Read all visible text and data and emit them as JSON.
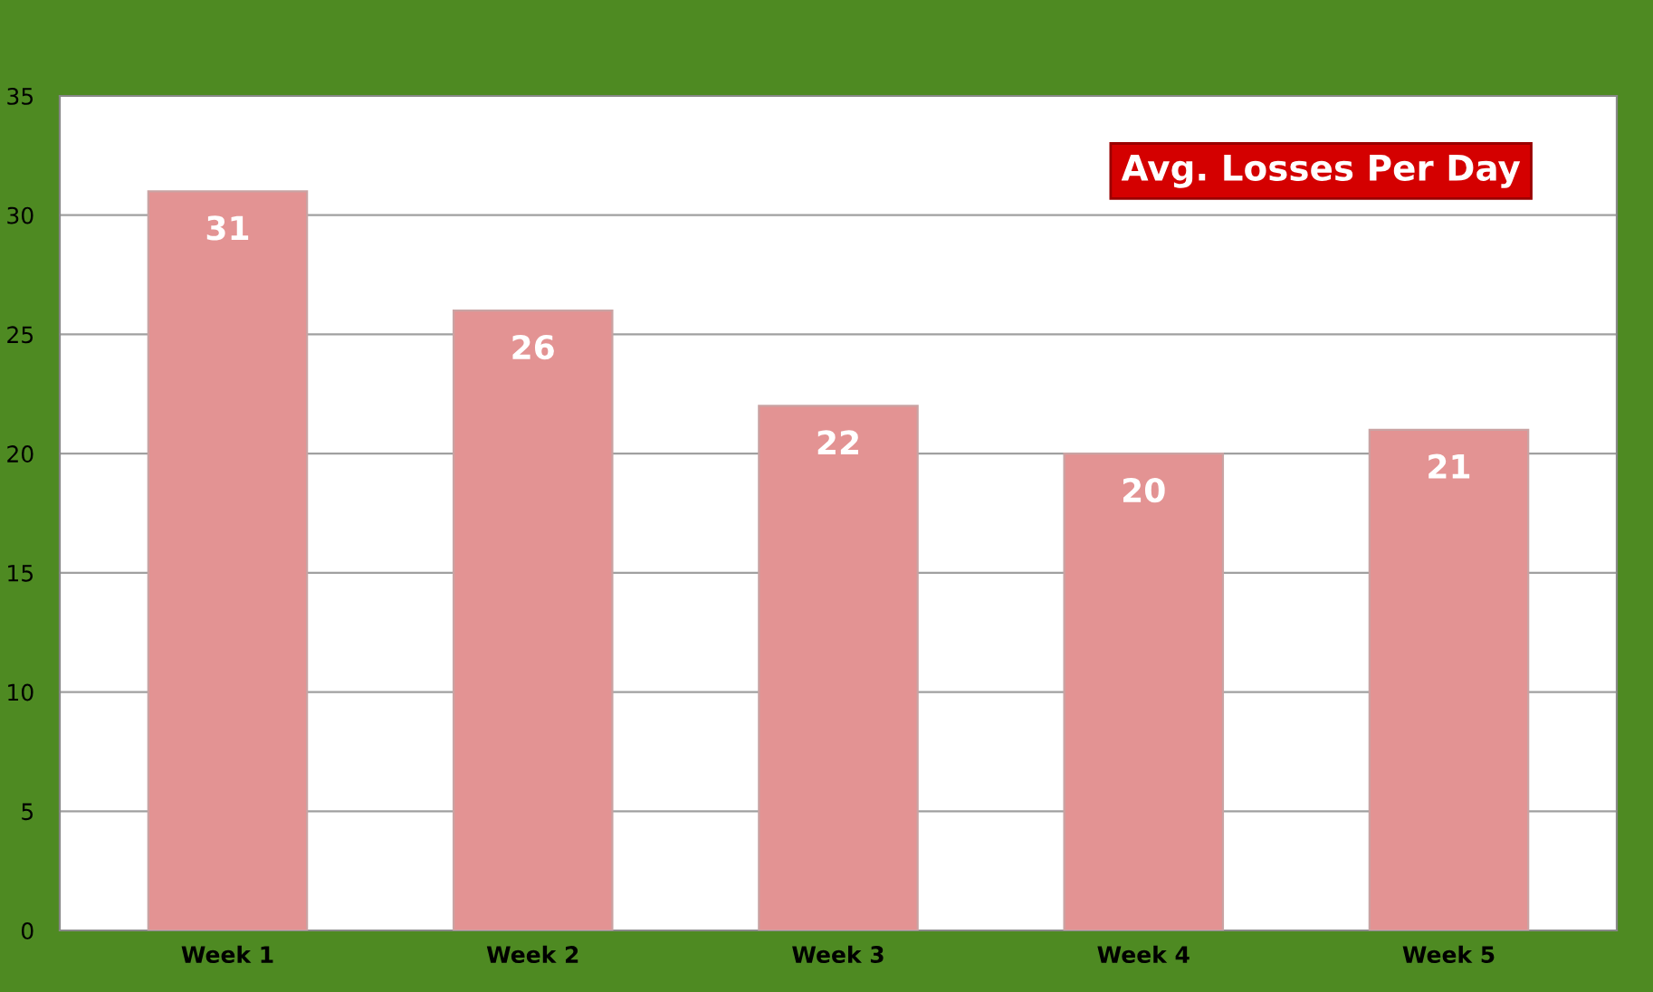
{
  "chart_data": {
    "type": "bar",
    "title": "Avg. Losses Per Day",
    "categories": [
      "Week 1",
      "Week 2",
      "Week 3",
      "Week 4",
      "Week 5"
    ],
    "values": [
      31,
      26,
      22,
      20,
      21
    ],
    "color": "#e39393",
    "ylim": [
      0,
      35
    ],
    "yticks": [
      0,
      5,
      10,
      15,
      20,
      25,
      30,
      35
    ],
    "grid": "y",
    "data_labels": true,
    "legend": false
  }
}
